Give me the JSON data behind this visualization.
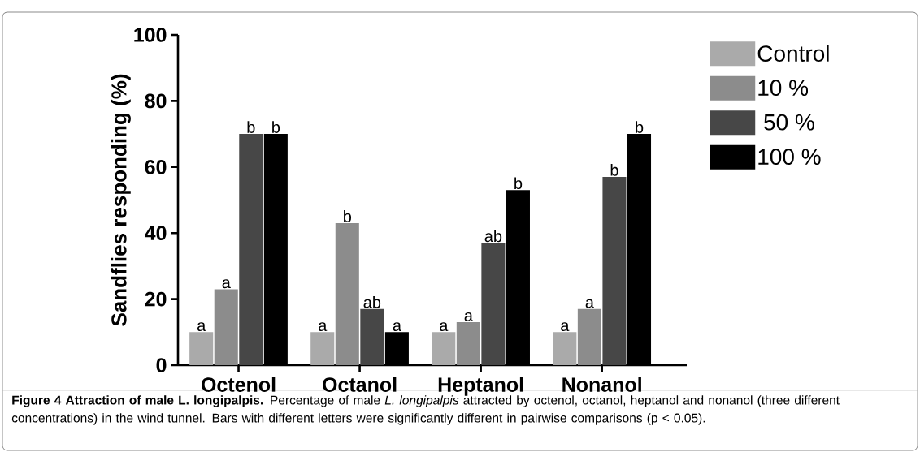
{
  "chart_data": {
    "type": "bar",
    "title": "Figure 4 Attraction of male L. longipalpis.",
    "ylabel": "Sandflies responding (%)",
    "categories": [
      "Octenol",
      "Octanol",
      "Heptanol",
      "Nonanol"
    ],
    "series": [
      {
        "name": "Control",
        "color": "#aaaaaa",
        "values": [
          10,
          10,
          10,
          10
        ],
        "value_labels": [
          "a",
          "a",
          "a",
          "a"
        ]
      },
      {
        "name": "10 %",
        "color": "#8c8c8c",
        "values": [
          23,
          43,
          13,
          17
        ],
        "value_labels": [
          "a",
          "b",
          "a",
          "a"
        ]
      },
      {
        "name": " 50 %",
        "color": "#474747",
        "values": [
          70,
          17,
          37,
          57
        ],
        "value_labels": [
          "b",
          "ab",
          "ab",
          "b"
        ]
      },
      {
        "name": "100 %",
        "color": "#000000",
        "values": [
          70,
          10,
          53,
          70
        ],
        "value_labels": [
          "b",
          "a",
          "b",
          "b"
        ]
      }
    ],
    "ylim": [
      0,
      100
    ],
    "yticks": [
      0,
      20,
      40,
      60,
      80,
      100
    ],
    "legend": "top right",
    "annotations": [
      "Percentage of male *L. longipalpis* attracted by octenol, octanol, heptanol and nonanol (three different concentrations) in the wind tunnel. Bars with different letters were significantly different in pairwise comparisons (p < 0.05)."
    ]
  }
}
